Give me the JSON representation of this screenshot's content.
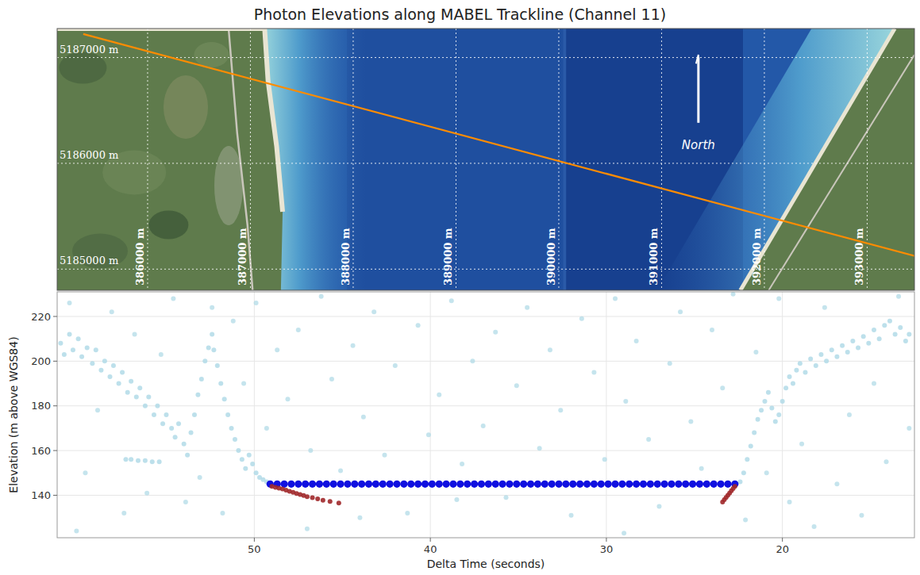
{
  "chart_data": {
    "type": "scatter",
    "title": "Photon Elevations along MABEL Trackline (Channel 11)",
    "x_label": "Delta Time (seconds)",
    "y_label": "Elevation (m above WGS84)",
    "xlim": [
      61.2,
      12.5
    ],
    "ylim": [
      121,
      231
    ],
    "xticks": [
      50,
      40,
      30,
      20
    ],
    "yticks": [
      140,
      160,
      180,
      200,
      220
    ],
    "grid": true,
    "series": [
      {
        "color": "#add8e6",
        "x": [
          60.5,
          59.6,
          58.9,
          58.1,
          57.4,
          56.8,
          56.1,
          55.3,
          54.6,
          53.9,
          53.1,
          52.4,
          51.8,
          51.2,
          50.6,
          49.9,
          49.3,
          48.7,
          48.1,
          47.5,
          46.8,
          46.2,
          45.6,
          45.1,
          44.4,
          43.8,
          43.2,
          42.6,
          42,
          41.3,
          40.7,
          40.1,
          39.5,
          38.8,
          38.2,
          37.6,
          37,
          36.3,
          35.7,
          35.1,
          34.5,
          33.8,
          33.2,
          32.6,
          32,
          31.4,
          30.7,
          30.1,
          29.5,
          28.9,
          28.3,
          27.6,
          27,
          26.4,
          25.8,
          25.2,
          24.6,
          24,
          23.4,
          22.8,
          22.1,
          21.5,
          20.9,
          20.2,
          19.6,
          18.9,
          18.2,
          17.6,
          16.9,
          16.2,
          15.5,
          14.8,
          14.1,
          13.4,
          12.8,
          60.1,
          47,
          38.5,
          29,
          44
        ],
        "values": [
          226,
          150,
          178,
          222,
          132,
          212,
          141,
          203,
          228,
          137,
          148,
          224,
          132,
          218,
          190,
          226,
          170,
          205,
          183,
          214,
          160,
          229,
          192,
          151,
          207,
          175,
          222,
          158,
          198,
          132,
          216,
          167,
          185,
          227,
          154,
          200,
          171,
          213,
          139,
          189,
          224,
          161,
          205,
          178,
          131,
          219,
          195,
          156,
          228,
          182,
          209,
          165,
          135,
          199,
          222,
          173,
          152,
          214,
          188,
          230,
          129,
          204,
          150,
          228,
          137,
          163,
          126,
          224,
          145,
          176,
          131,
          190,
          155,
          229,
          170,
          124,
          125,
          138,
          123,
          130
        ]
      },
      {
        "color": "#add8e6",
        "x": [
          61,
          60.8,
          60.5,
          60.3,
          60,
          59.8,
          59.5,
          59.2,
          59,
          58.7,
          58.5,
          58.2,
          58,
          57.7,
          57.5,
          57.2,
          57,
          56.7,
          56.5,
          56.2,
          56,
          55.7,
          55.5,
          55.2,
          55,
          54.7,
          54.5,
          54.3,
          54,
          53.8,
          53.6,
          53.4,
          53.2,
          53,
          52.8,
          52.6,
          52.4,
          52.3,
          52.1,
          51.9,
          51.7,
          51.5,
          51.3,
          51.1,
          50.9,
          50.7,
          50.5,
          50.3,
          50.1,
          49.9,
          49.7,
          49.5,
          49.3,
          57.3,
          57,
          56.6,
          56.2,
          55.8,
          55.4,
          22.4,
          22.2,
          22,
          21.8,
          21.6,
          21.4,
          21.2,
          21,
          20.8,
          20.6,
          20.4,
          20.2,
          20,
          19.8,
          19.6,
          19.4,
          19.2,
          19,
          18.7,
          18.4,
          18.1,
          17.8,
          17.5,
          17.2,
          16.9,
          16.6,
          16.3,
          16,
          15.7,
          15.4,
          15.1,
          14.8,
          14.5,
          14.2,
          13.9,
          13.6,
          13.3,
          13,
          12.8
        ],
        "values": [
          208,
          203,
          212,
          205,
          210,
          202,
          206,
          199,
          205,
          196,
          200,
          193,
          198,
          190,
          195,
          186,
          191,
          184,
          188,
          180,
          184,
          176,
          180,
          172,
          176,
          170,
          166,
          172,
          163,
          158,
          168,
          176,
          185,
          192,
          200,
          206,
          212,
          205,
          198,
          190,
          183,
          176,
          170,
          165,
          160,
          156,
          152,
          158,
          154,
          150,
          148,
          147,
          146,
          156,
          156,
          155.5,
          155.5,
          155,
          155,
          146,
          150,
          156,
          162,
          168,
          174,
          178,
          182,
          186,
          179,
          173,
          176,
          182,
          188,
          193,
          190,
          196,
          199,
          195,
          201,
          198,
          203,
          200,
          205,
          202,
          207,
          204,
          209,
          206,
          211,
          208,
          214,
          210,
          216,
          218,
          212,
          215,
          209,
          212
        ]
      },
      {
        "color": "#1010e0",
        "x": [
          49.1,
          48.7,
          48.3,
          47.9,
          47.5,
          47.1,
          46.7,
          46.3,
          45.9,
          45.5,
          45.1,
          44.7,
          44.3,
          43.9,
          43.5,
          43.1,
          42.7,
          42.3,
          41.9,
          41.5,
          41.1,
          40.7,
          40.3,
          39.9,
          39.5,
          39.1,
          38.7,
          38.3,
          37.9,
          37.5,
          37.1,
          36.7,
          36.3,
          35.9,
          35.5,
          35.1,
          34.7,
          34.3,
          33.9,
          33.5,
          33.1,
          32.7,
          32.3,
          31.9,
          31.5,
          31.1,
          30.7,
          30.3,
          29.9,
          29.5,
          29.1,
          28.7,
          28.3,
          27.9,
          27.5,
          27.1,
          26.7,
          26.3,
          25.9,
          25.5,
          25.1,
          24.7,
          24.3,
          23.9,
          23.5,
          23.1,
          22.7
        ],
        "values": [
          145,
          145,
          145,
          145,
          145,
          145,
          145,
          145,
          145,
          145,
          145,
          145,
          145,
          145,
          145,
          145,
          145,
          145,
          145,
          145,
          145,
          145,
          145,
          145,
          145,
          145,
          145,
          145,
          145,
          145,
          145,
          145,
          145,
          145,
          145,
          145,
          145,
          145,
          145,
          145,
          145,
          145,
          145,
          145,
          145,
          145,
          145,
          145,
          145,
          145,
          145,
          145,
          145,
          145,
          145,
          145,
          145,
          145,
          145,
          145,
          145,
          145,
          145,
          145,
          145,
          145,
          145
        ]
      },
      {
        "color": "#a0282a",
        "x": [
          49,
          48.8,
          48.6,
          48.4,
          48.2,
          48,
          47.8,
          47.6,
          47.4,
          47.2,
          47,
          46.7,
          46.4,
          46.1,
          45.7,
          45.2,
          23.4,
          23.3,
          23.2,
          23.1,
          23,
          22.9,
          22.8,
          22.7
        ],
        "values": [
          144,
          143.5,
          143.2,
          142.8,
          142.3,
          141.8,
          141.3,
          140.8,
          140.3,
          139.9,
          139.4,
          138.9,
          138.4,
          137.8,
          137.2,
          136.5,
          137,
          138,
          139,
          140,
          141,
          142,
          143,
          144
        ]
      }
    ]
  },
  "map": {
    "easting_range": [
      385120,
      393460
    ],
    "northing_range": [
      5187274,
      5184800
    ],
    "eastings": [
      {
        "value": 386000,
        "label": "386000 m"
      },
      {
        "value": 387000,
        "label": "387000 m"
      },
      {
        "value": 388000,
        "label": "388000 m"
      },
      {
        "value": 389000,
        "label": "389000 m"
      },
      {
        "value": 390000,
        "label": "390000 m"
      },
      {
        "value": 391000,
        "label": "391000 m"
      },
      {
        "value": 392000,
        "label": "392000 m"
      },
      {
        "value": 393000,
        "label": "393000 m"
      }
    ],
    "northings": [
      {
        "value": 5187000,
        "label": "5187000 m"
      },
      {
        "value": 5186000,
        "label": "5186000 m"
      },
      {
        "value": 5185000,
        "label": "5185000 m"
      }
    ],
    "track": {
      "color": "#ff8c00",
      "easting": [
        385374,
        393513
      ],
      "northing": [
        5187222,
        5185111
      ]
    },
    "north_label": "North"
  }
}
